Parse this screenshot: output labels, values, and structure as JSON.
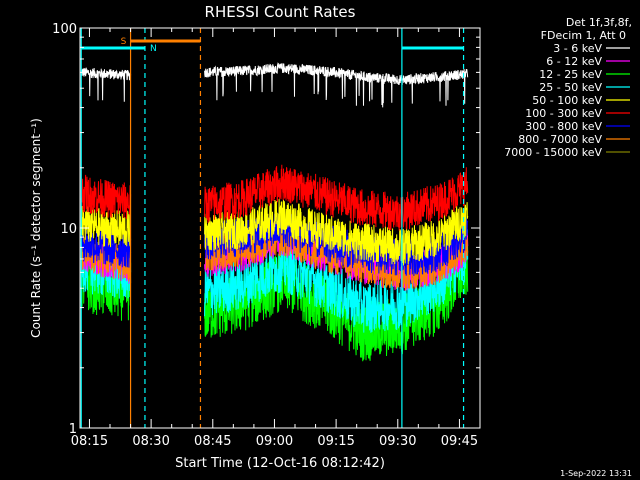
{
  "chart_data": {
    "type": "line",
    "title": "RHESSI Count Rates",
    "xlabel": "Start Time (12-Oct-16 08:12:42)",
    "ylabel": "Count Rate (s⁻¹ detector segment⁻¹)",
    "x_scale": "time",
    "y_scale": "log",
    "xlim": [
      "08:12:42",
      "09:50:00"
    ],
    "ylim": [
      1,
      100
    ],
    "x_ticks": [
      "08:15",
      "08:30",
      "08:45",
      "09:00",
      "09:15",
      "09:30",
      "09:45"
    ],
    "y_ticks": [
      1,
      10,
      100
    ],
    "legend_header": [
      "Det 1f,3f,8f,",
      "FDecim 1, Att 0"
    ],
    "legend_placement": "right",
    "footer": "1-Sep-2022 13:31",
    "data_gaps": [
      [
        "08:25:00",
        "08:43:00"
      ],
      [
        "09:31:00",
        "09:31:00"
      ]
    ],
    "annotations": {
      "night_bars": [
        {
          "label": "",
          "start": "08:13:00",
          "end": "08:28:30",
          "color": "#00ffff"
        },
        {
          "label": "",
          "start": "09:31:00",
          "end": "09:46:00",
          "color": "#00ffff"
        }
      ],
      "saa_bar": {
        "label": "S",
        "start": "08:25:00",
        "end": "08:42:00",
        "color": "#ff8000"
      },
      "night_label": {
        "label": "N",
        "time": "08:28:30",
        "color": "#00ffff"
      },
      "vertical_lines": [
        {
          "time": "08:13:00",
          "color": "#00ffff",
          "style": "solid"
        },
        {
          "time": "08:25:00",
          "color": "#ff8000",
          "style": "solid"
        },
        {
          "time": "08:28:30",
          "color": "#00ffff",
          "style": "dashed"
        },
        {
          "time": "08:42:00",
          "color": "#ff8000",
          "style": "dashed"
        },
        {
          "time": "09:31:00",
          "color": "#00ffff",
          "style": "solid"
        },
        {
          "time": "09:46:00",
          "color": "#00ffff",
          "style": "dashed"
        }
      ]
    },
    "series": [
      {
        "name": "3 - 6 keV",
        "color": "#ffffff",
        "times": [
          "08:13:00",
          "08:19:00",
          "08:25:00",
          "08:43:00",
          "08:52:00",
          "09:02:00",
          "09:12:00",
          "09:22:00",
          "09:31:00",
          "09:40:00",
          "09:47:00"
        ],
        "values": [
          60,
          59,
          58,
          60,
          61,
          63,
          61,
          57,
          55,
          57,
          59
        ]
      },
      {
        "name": "6 - 12 keV",
        "color": "#ff00ff",
        "times": [
          "08:13:00",
          "08:19:00",
          "08:25:00",
          "08:43:00",
          "08:52:00",
          "09:02:00",
          "09:12:00",
          "09:22:00",
          "09:31:00",
          "09:40:00",
          "09:47:00"
        ],
        "values": [
          7.5,
          7,
          6.5,
          7,
          7.5,
          9,
          7.5,
          6.5,
          6,
          6.5,
          8
        ]
      },
      {
        "name": "12 - 25 keV",
        "color": "#00ff00",
        "times": [
          "08:13:00",
          "08:19:00",
          "08:25:00",
          "08:43:00",
          "08:52:00",
          "09:02:00",
          "09:12:00",
          "09:22:00",
          "09:31:00",
          "09:40:00",
          "09:47:00"
        ],
        "values": [
          5.5,
          5,
          4.8,
          3.8,
          4.2,
          5.5,
          4.2,
          3,
          3.3,
          4.2,
          6.5
        ]
      },
      {
        "name": "25 - 50 keV",
        "color": "#00ffff",
        "times": [
          "08:13:00",
          "08:19:00",
          "08:25:00",
          "08:43:00",
          "08:52:00",
          "09:02:00",
          "09:12:00",
          "09:22:00",
          "09:31:00",
          "09:40:00",
          "09:47:00"
        ],
        "values": [
          6.5,
          6,
          5.8,
          4.8,
          5.2,
          6.5,
          5.2,
          4,
          4.2,
          5.2,
          7.5
        ]
      },
      {
        "name": "50 - 100 keV",
        "color": "#ffff00",
        "times": [
          "08:13:00",
          "08:19:00",
          "08:25:00",
          "08:43:00",
          "08:52:00",
          "09:02:00",
          "09:12:00",
          "09:22:00",
          "09:31:00",
          "09:40:00",
          "09:47:00"
        ],
        "values": [
          10.5,
          10,
          9.8,
          9.5,
          9.8,
          11.5,
          9.5,
          8.5,
          8,
          9,
          11.5
        ]
      },
      {
        "name": "100 - 300 keV",
        "color": "#ff0000",
        "times": [
          "08:13:00",
          "08:19:00",
          "08:25:00",
          "08:43:00",
          "08:52:00",
          "09:02:00",
          "09:12:00",
          "09:22:00",
          "09:31:00",
          "09:40:00",
          "09:47:00"
        ],
        "values": [
          15,
          14,
          13.5,
          13,
          14,
          17,
          14.5,
          12.5,
          12,
          13.5,
          16.5
        ]
      },
      {
        "name": "300 - 800 keV",
        "color": "#0000ff",
        "times": [
          "08:13:00",
          "08:19:00",
          "08:25:00",
          "08:43:00",
          "08:52:00",
          "09:02:00",
          "09:12:00",
          "09:22:00",
          "09:31:00",
          "09:40:00",
          "09:47:00"
        ],
        "values": [
          8.5,
          8,
          7.8,
          8.5,
          9,
          10,
          8.5,
          7.5,
          7,
          7.5,
          9.5
        ]
      },
      {
        "name": "800 - 7000 keV",
        "color": "#ff8000",
        "times": [
          "08:13:00",
          "08:19:00",
          "08:25:00",
          "08:43:00",
          "08:52:00",
          "09:02:00",
          "09:12:00",
          "09:22:00",
          "09:31:00",
          "09:40:00",
          "09:47:00"
        ],
        "values": [
          7.5,
          7,
          6.5,
          7.5,
          8,
          9,
          7.5,
          6.5,
          6,
          6.5,
          8.5
        ]
      },
      {
        "name": "7000 - 15000 keV",
        "color": "#808000",
        "times": [],
        "values": []
      }
    ]
  }
}
